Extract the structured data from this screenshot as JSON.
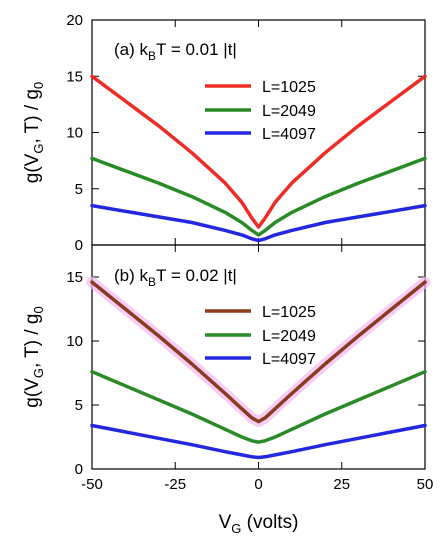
{
  "colors": {
    "red": "#ee2b24",
    "green": "#2a8a25",
    "blue": "#2328e0",
    "brown": "#8a3a1d",
    "pink_glow": "#f4b8f4"
  },
  "chart_data": [
    {
      "type": "line",
      "panel_label": "(a) k",
      "panel_label_sub": "B",
      "panel_label_rest": "T = 0.01 |t|",
      "ylabel": "g(V",
      "ylabel_sub1": "G",
      "ylabel_mid": ", T) / g",
      "ylabel_sub2": "0",
      "xlabel": "",
      "xlim": [
        -50,
        50
      ],
      "ylim": [
        0,
        20
      ],
      "yticks": [
        0,
        5,
        10,
        15,
        20
      ],
      "xticks": [
        -50,
        -25,
        0,
        25,
        50
      ],
      "show_xtick_labels": false,
      "legend_position": "upper-center",
      "x": [
        -50,
        -40,
        -30,
        -20,
        -10,
        -5,
        -2,
        0,
        2,
        5,
        10,
        20,
        30,
        40,
        50
      ],
      "series": [
        {
          "name": "L=1025",
          "color": "red",
          "values": [
            15.0,
            12.8,
            10.6,
            8.2,
            5.5,
            3.8,
            2.4,
            1.6,
            2.4,
            3.8,
            5.5,
            8.2,
            10.6,
            12.8,
            15.0
          ]
        },
        {
          "name": "L=2049",
          "color": "green",
          "values": [
            7.7,
            6.6,
            5.5,
            4.3,
            2.9,
            2.0,
            1.3,
            0.9,
            1.3,
            2.0,
            2.9,
            4.3,
            5.5,
            6.6,
            7.7
          ]
        },
        {
          "name": "L=4097",
          "color": "blue",
          "values": [
            3.5,
            3.0,
            2.5,
            2.0,
            1.3,
            0.9,
            0.55,
            0.4,
            0.55,
            0.9,
            1.3,
            2.0,
            2.5,
            3.0,
            3.5
          ]
        }
      ]
    },
    {
      "type": "line",
      "panel_label": "(b) k",
      "panel_label_sub": "B",
      "panel_label_rest": "T = 0.02 |t|",
      "ylabel": "g(V",
      "ylabel_sub1": "G",
      "ylabel_mid": ", T) / g",
      "ylabel_sub2": "0",
      "xlabel": "V",
      "xlabel_sub": "G",
      "xlabel_rest": " (volts)",
      "xlim": [
        -50,
        50
      ],
      "ylim": [
        0,
        17.5
      ],
      "yticks": [
        0,
        5,
        10,
        15
      ],
      "xticks": [
        -50,
        -25,
        0,
        25,
        50
      ],
      "show_xtick_labels": true,
      "legend_position": "upper-center",
      "x": [
        -50,
        -40,
        -30,
        -20,
        -10,
        -5,
        -2,
        0,
        2,
        5,
        10,
        20,
        30,
        40,
        50
      ],
      "series": [
        {
          "name": "L=1025",
          "color": "brown",
          "glow": "pink_glow",
          "values": [
            14.6,
            12.5,
            10.4,
            8.2,
            5.9,
            4.7,
            4.0,
            3.7,
            4.0,
            4.7,
            5.9,
            8.2,
            10.4,
            12.5,
            14.6
          ]
        },
        {
          "name": "L=2049",
          "color": "green",
          "values": [
            7.6,
            6.5,
            5.4,
            4.3,
            3.1,
            2.5,
            2.2,
            2.1,
            2.2,
            2.5,
            3.1,
            4.3,
            5.4,
            6.5,
            7.6
          ]
        },
        {
          "name": "L=4097",
          "color": "blue",
          "values": [
            3.4,
            2.9,
            2.4,
            1.9,
            1.35,
            1.1,
            0.95,
            0.9,
            0.95,
            1.1,
            1.35,
            1.9,
            2.4,
            2.9,
            3.4
          ]
        }
      ]
    }
  ]
}
